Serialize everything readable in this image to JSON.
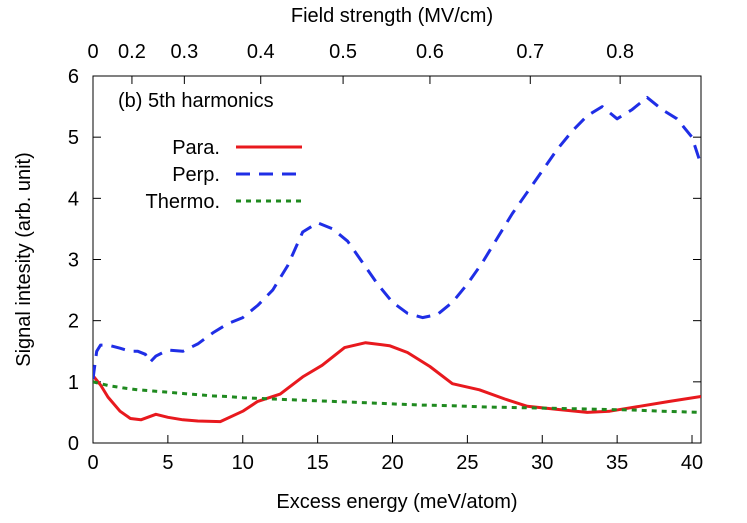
{
  "chart_data": {
    "type": "line",
    "annotation": "(b) 5th harmonics",
    "xlabel": "Excess energy (meV/atom)",
    "ylabel": "Signal intesity (arb. unit)",
    "x2label": "Field strength (MV/cm)",
    "xlim": [
      0,
      40.6
    ],
    "ylim": [
      0,
      6
    ],
    "xticks": [
      0,
      5,
      10,
      15,
      20,
      25,
      30,
      35,
      40
    ],
    "xtick_labels": [
      "0",
      "5",
      "10",
      "15",
      "20",
      "25",
      "30",
      "35",
      "40"
    ],
    "yticks": [
      0,
      1,
      2,
      3,
      4,
      5,
      6
    ],
    "ytick_labels": [
      "0",
      "1",
      "2",
      "3",
      "4",
      "5",
      "6"
    ],
    "x2ticks": [
      {
        "label": "0",
        "x": 0.0
      },
      {
        "label": "0.2",
        "x": 2.6
      },
      {
        "label": "0.3",
        "x": 6.1
      },
      {
        "label": "0.4",
        "x": 11.2
      },
      {
        "label": "0.5",
        "x": 16.7
      },
      {
        "label": "0.6",
        "x": 22.5
      },
      {
        "label": "0.7",
        "x": 29.2
      },
      {
        "label": "0.8",
        "x": 35.2
      }
    ],
    "grid": false,
    "legend_position": "top-left",
    "series": [
      {
        "name": "Para.",
        "color": "#e8191e",
        "style": "solid",
        "x": [
          0,
          0.5,
          1,
          1.8,
          2.5,
          3.2,
          4.2,
          5,
          6,
          7,
          8.5,
          10,
          11,
          12.5,
          14,
          15.3,
          16.8,
          18.2,
          19.8,
          21,
          22.5,
          24,
          25.8,
          27.5,
          29,
          31,
          33,
          34.5,
          36.5,
          38.5,
          40.6
        ],
        "values": [
          1.1,
          0.95,
          0.75,
          0.52,
          0.4,
          0.38,
          0.47,
          0.42,
          0.38,
          0.36,
          0.35,
          0.52,
          0.68,
          0.8,
          1.08,
          1.27,
          1.56,
          1.64,
          1.59,
          1.48,
          1.25,
          0.97,
          0.87,
          0.72,
          0.6,
          0.55,
          0.5,
          0.52,
          0.6,
          0.68,
          0.76
        ]
      },
      {
        "name": "Perp.",
        "color": "#1f2ee6",
        "style": "dashed",
        "x": [
          0,
          0.25,
          0.5,
          1,
          1.8,
          2.5,
          3,
          3.5,
          3.8,
          4.2,
          5,
          6,
          7,
          8,
          9,
          10,
          11,
          12,
          13,
          14,
          15,
          16,
          17,
          18,
          19,
          20,
          21,
          22,
          23,
          24,
          25,
          26,
          27,
          28,
          29,
          30,
          31,
          32,
          33,
          34,
          35,
          36,
          37,
          38,
          39,
          40,
          40.6
        ],
        "values": [
          1.05,
          1.5,
          1.6,
          1.6,
          1.55,
          1.5,
          1.5,
          1.45,
          1.32,
          1.42,
          1.52,
          1.5,
          1.62,
          1.8,
          1.95,
          2.05,
          2.25,
          2.5,
          2.9,
          3.45,
          3.6,
          3.5,
          3.3,
          2.95,
          2.6,
          2.3,
          2.12,
          2.05,
          2.1,
          2.3,
          2.6,
          2.95,
          3.35,
          3.75,
          4.1,
          4.45,
          4.8,
          5.1,
          5.35,
          5.5,
          5.3,
          5.45,
          5.65,
          5.45,
          5.3,
          5.0,
          4.55
        ]
      },
      {
        "name": "Thermo.",
        "color": "#1f8a1f",
        "style": "dotted",
        "x": [
          0,
          1,
          2,
          3,
          4,
          5,
          6,
          7,
          8,
          9,
          10,
          12,
          14,
          16,
          18,
          20,
          22,
          24,
          26,
          28,
          30,
          32,
          34,
          36,
          38,
          40.6
        ],
        "values": [
          1.0,
          0.94,
          0.9,
          0.87,
          0.85,
          0.83,
          0.81,
          0.79,
          0.77,
          0.76,
          0.74,
          0.72,
          0.7,
          0.68,
          0.66,
          0.64,
          0.62,
          0.61,
          0.59,
          0.58,
          0.57,
          0.56,
          0.55,
          0.54,
          0.52,
          0.5
        ]
      }
    ]
  }
}
